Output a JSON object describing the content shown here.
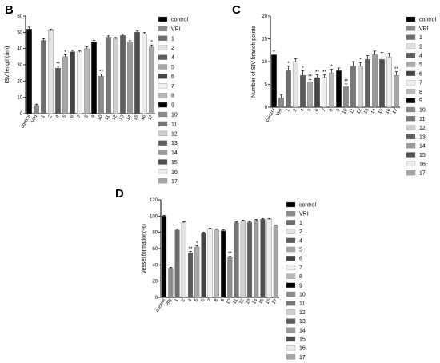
{
  "colors": {
    "control": "#000000",
    "VRI": "#8c8c8c",
    "1": "#6e6e6e",
    "2": "#e3e3e3",
    "4": "#5a5a5a",
    "5": "#a8a8a8",
    "6": "#444444",
    "7": "#f0f0f0",
    "8": "#b8b8b8",
    "9": "#000000",
    "10": "#8c8c8c",
    "11": "#767676",
    "12": "#cfcfcf",
    "13": "#5f5f5f",
    "14": "#9a9a9a",
    "15": "#505050",
    "16": "#ebebeb",
    "17": "#a5a5a5"
  },
  "chart_data": [
    {
      "panel": "B",
      "type": "bar",
      "ylabel": "ISV length(um)",
      "ylim": [
        0,
        60
      ],
      "yticks": [
        0,
        10,
        20,
        30,
        40,
        50,
        60
      ],
      "categories": [
        "control",
        "VRI",
        "1",
        "2",
        "4",
        "5",
        "6",
        "7",
        "8",
        "9",
        "10",
        "11",
        "12",
        "13",
        "14",
        "15",
        "16",
        "17"
      ],
      "values": [
        52,
        5,
        45,
        51,
        28,
        35,
        38,
        38,
        40,
        44,
        23,
        47,
        46,
        48,
        44,
        50,
        49,
        41
      ],
      "errors": [
        1.2,
        0.8,
        1.0,
        0.8,
        1.0,
        1.2,
        1.0,
        0.8,
        1.0,
        1.0,
        1.2,
        0.8,
        0.8,
        0.8,
        0.8,
        0.8,
        0.8,
        1.2
      ],
      "annotations": [
        "",
        "",
        "",
        "",
        "**",
        "*",
        "",
        "",
        "",
        "",
        "**",
        "",
        "",
        "",
        "",
        "",
        "",
        "*"
      ],
      "legend": [
        "control",
        "VRI",
        "1",
        "2",
        "4",
        "5",
        "6",
        "7",
        "8",
        "9",
        "10",
        "11",
        "12",
        "13",
        "14",
        "15",
        "16",
        "17"
      ]
    },
    {
      "panel": "C",
      "type": "bar",
      "ylabel": "Number of SIV branch points",
      "ylim": [
        0,
        20
      ],
      "yticks": [
        0,
        5,
        10,
        15,
        20
      ],
      "categories": [
        "control",
        "VRI",
        "1",
        "2",
        "4",
        "5",
        "6",
        "7",
        "8",
        "9",
        "10",
        "11",
        "12",
        "13",
        "14",
        "15",
        "16",
        "17"
      ],
      "values": [
        11.5,
        2,
        8,
        10,
        7,
        5.5,
        6.5,
        6.5,
        7.5,
        8,
        4.5,
        9,
        9,
        10.5,
        11.5,
        10.5,
        11,
        7
      ],
      "errors": [
        0.8,
        0.8,
        1.0,
        0.6,
        1.0,
        0.6,
        0.6,
        0.6,
        0.8,
        0.6,
        0.6,
        1.0,
        0.8,
        0.8,
        0.8,
        1.5,
        0.8,
        0.8
      ],
      "annotations": [
        "",
        "",
        "*",
        "",
        "*",
        "**",
        "**",
        "**",
        "*",
        "",
        "**",
        "",
        "*",
        "",
        "",
        "",
        "",
        "**"
      ],
      "legend": [
        "control",
        "VRI",
        "1",
        "2",
        "4",
        "5",
        "6",
        "7",
        "8",
        "9",
        "10",
        "11",
        "12",
        "13",
        "14",
        "15",
        "16",
        "17"
      ]
    },
    {
      "panel": "D",
      "type": "bar",
      "ylabel": "vessel formation(%)",
      "ylim": [
        0,
        120
      ],
      "yticks": [
        0,
        20,
        40,
        60,
        80,
        100,
        120
      ],
      "categories": [
        "control",
        "VRI",
        "1",
        "2",
        "4",
        "5",
        "6",
        "7",
        "8",
        "9",
        "10",
        "11",
        "12",
        "13",
        "14",
        "15",
        "16",
        "17"
      ],
      "values": [
        100,
        36,
        83,
        92,
        55,
        62,
        79,
        84,
        83,
        82,
        49,
        92,
        94,
        92,
        95,
        96,
        96,
        88
      ],
      "errors": [
        0.8,
        1.0,
        1.0,
        1.0,
        1.5,
        1.5,
        1.0,
        1.0,
        1.0,
        1.0,
        1.5,
        1.0,
        1.0,
        1.0,
        1.0,
        1.0,
        1.0,
        1.0
      ],
      "annotations": [
        "",
        "",
        "",
        "",
        "**",
        "*",
        "",
        "",
        "",
        "",
        "**",
        "",
        "",
        "",
        "",
        "",
        "",
        ""
      ],
      "legend": [
        "control",
        "VRI",
        "1",
        "2",
        "4",
        "5",
        "6",
        "7",
        "8",
        "9",
        "10",
        "11",
        "12",
        "13",
        "14",
        "15",
        "16",
        "17"
      ]
    }
  ]
}
